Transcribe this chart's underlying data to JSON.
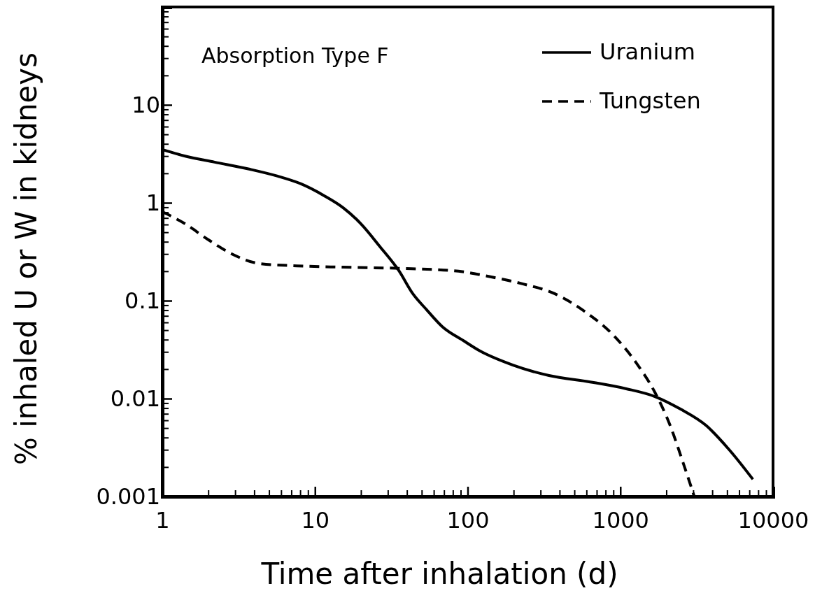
{
  "chart_data": {
    "type": "line",
    "xlabel": "Time after inhalation (d)",
    "ylabel": "% inhaled U or W in kidneys",
    "log": "xy",
    "xlim": [
      1,
      10000
    ],
    "xticks": [
      1,
      10,
      100,
      1000,
      10000
    ],
    "ylim": [
      0.001,
      100
    ],
    "yticks": [
      0.001,
      0.01,
      0.1,
      1,
      10,
      {
        "value": 100,
        "label": null
      }
    ],
    "grid": false,
    "legend": "top right",
    "marker": "none",
    "annotations": [
      "Absorption Type F"
    ],
    "series": [
      {
        "name": "Uranium",
        "color": "#000000",
        "line_style": "solid",
        "x": [
          1,
          1.41,
          2.2,
          3.75,
          5.7,
          8.1,
          11.5,
          15.3,
          20,
          26.7,
          35.4,
          43.7,
          53.8,
          68.5,
          94,
          119,
          198,
          341,
          634,
          1094,
          1683,
          2480,
          3650,
          5170,
          7380
        ],
        "values": [
          3.5,
          3.0,
          2.6,
          2.2,
          1.87,
          1.56,
          1.18,
          0.89,
          0.61,
          0.355,
          0.203,
          0.118,
          0.081,
          0.054,
          0.039,
          0.031,
          0.022,
          0.0172,
          0.0148,
          0.0126,
          0.0105,
          0.0078,
          0.0053,
          0.003,
          0.0015
        ]
      },
      {
        "name": "Tungsten",
        "color": "#000000",
        "line_style": "dashed",
        "x": [
          1,
          1.41,
          2.0,
          2.86,
          4.3,
          7.6,
          15.3,
          35.4,
          87,
          130,
          231,
          371,
          589,
          906,
          1280,
          1683,
          2120,
          2580,
          3050
        ],
        "values": [
          0.81,
          0.61,
          0.42,
          0.3,
          0.24,
          0.227,
          0.22,
          0.214,
          0.2,
          0.18,
          0.148,
          0.118,
          0.077,
          0.044,
          0.0228,
          0.0116,
          0.0053,
          0.0022,
          0.001
        ]
      }
    ]
  }
}
